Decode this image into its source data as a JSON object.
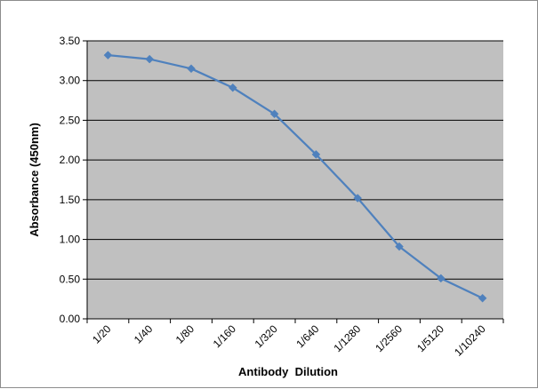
{
  "chart_data": {
    "type": "line",
    "title": "",
    "xlabel": "Antibody  Dilution",
    "ylabel": "Absorbance (450nm)",
    "categories": [
      "1/20",
      "1/40",
      "1/80",
      "1/160",
      "1/320",
      "1/640",
      "1/1280",
      "1/2560",
      "1/5120",
      "1/10240"
    ],
    "series": [
      {
        "values": [
          3.32,
          3.27,
          3.15,
          2.91,
          2.58,
          2.07,
          1.52,
          0.91,
          0.51,
          0.26
        ]
      }
    ],
    "ylim": [
      0,
      3.5
    ],
    "y_ticks": [
      "0.00",
      "0.50",
      "1.00",
      "1.50",
      "2.00",
      "2.50",
      "3.00",
      "3.50"
    ],
    "grid": "horizontal",
    "legend": "none",
    "colors": {
      "line": "#4f81bd",
      "plot_background": "#c0c0c0",
      "gridline": "#000000",
      "frame": "#8c8c8c"
    },
    "marker": "diamond"
  }
}
